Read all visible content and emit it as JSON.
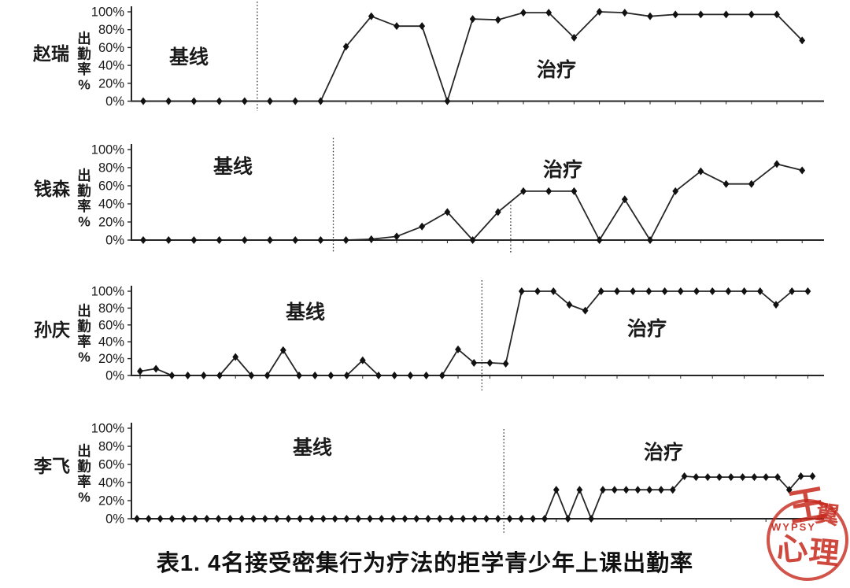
{
  "page": {
    "caption": "表1. 4名接受密集行为疗法的拒学青少年上课出勤率",
    "background": "#ffffff",
    "line_color": "#262626",
    "text_color": "#1a1a1a"
  },
  "axis": {
    "ylabel_vertical": "出勤率%",
    "ytick_labels": [
      "100%",
      "80%",
      "60%",
      "40%",
      "20%",
      "0%"
    ],
    "ymin": 0,
    "ymax": 100,
    "xticks_labeled": false
  },
  "phases": {
    "baseline_label": "基线",
    "treatment_label": "治疗"
  },
  "watermark": {
    "latin": "WYPSY",
    "chars": [
      "王",
      "翼",
      "心",
      "理"
    ],
    "color": "#c5281c"
  },
  "chart_data": [
    {
      "type": "line",
      "subject": "赵瑞",
      "ylabel": "出勤率%",
      "baseline_label": "基线",
      "treatment_label": "治疗",
      "baseline_sessions": 5,
      "values_percent": [
        0,
        0,
        0,
        0,
        0,
        0,
        0,
        0,
        61,
        95,
        84,
        84,
        0,
        92,
        91,
        99,
        99,
        71,
        100,
        99,
        95,
        97,
        97,
        97,
        97,
        97,
        68
      ]
    },
    {
      "type": "line",
      "subject": "钱森",
      "ylabel": "出勤率%",
      "baseline_label": "基线",
      "treatment_label": "治疗",
      "baseline_sessions": 8,
      "extra_marker_after_session": 15,
      "values_percent": [
        0,
        0,
        0,
        0,
        0,
        0,
        0,
        0,
        0,
        1,
        4,
        15,
        31,
        0,
        31,
        54,
        54,
        54,
        0,
        45,
        0,
        54,
        76,
        62,
        62,
        84,
        77
      ]
    },
    {
      "type": "line",
      "subject": "孙庆",
      "ylabel": "出勤率%",
      "baseline_label": "基线",
      "treatment_label": "治疗",
      "baseline_sessions": 22,
      "values_percent": [
        5,
        8,
        0,
        0,
        0,
        0,
        22,
        0,
        0,
        30,
        0,
        0,
        0,
        0,
        18,
        0,
        0,
        0,
        0,
        0,
        31,
        15,
        15,
        14,
        100,
        100,
        100,
        84,
        77,
        100,
        100,
        100,
        100,
        100,
        100,
        100,
        100,
        100,
        100,
        100,
        84,
        100,
        100
      ]
    },
    {
      "type": "line",
      "subject": "李飞",
      "ylabel": "出勤率%",
      "baseline_label": "基线",
      "treatment_label": "治疗",
      "baseline_sessions": 32,
      "values_percent": [
        0,
        0,
        0,
        0,
        0,
        0,
        0,
        0,
        0,
        0,
        0,
        0,
        0,
        0,
        0,
        0,
        0,
        0,
        0,
        0,
        0,
        0,
        0,
        0,
        0,
        0,
        0,
        0,
        0,
        0,
        0,
        0,
        0,
        0,
        0,
        0,
        32,
        0,
        32,
        0,
        32,
        32,
        32,
        32,
        32,
        32,
        32,
        47,
        46,
        46,
        46,
        46,
        46,
        46,
        46,
        46,
        32,
        47,
        47
      ]
    }
  ]
}
